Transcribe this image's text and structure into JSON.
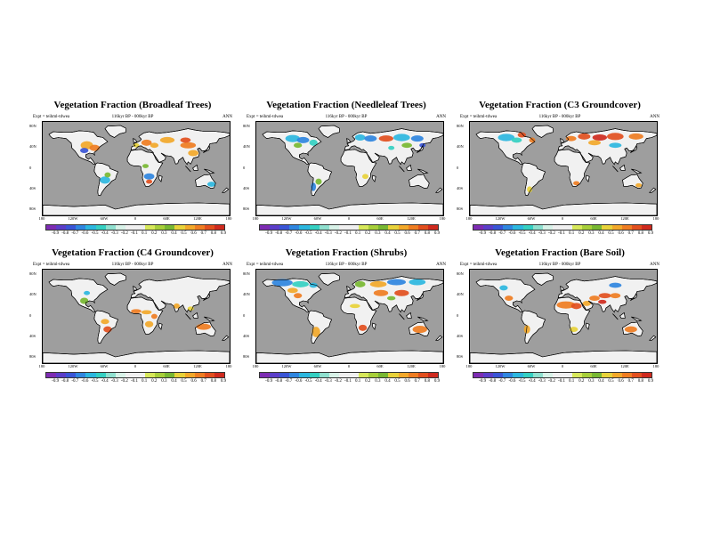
{
  "colors": {
    "ocean": "#9e9e9e",
    "land": "#f1f1f1",
    "coast": "#000000",
    "colorbar": [
      "#7d2cb3",
      "#5b3ec9",
      "#3a55d6",
      "#2f86e0",
      "#2cb7df",
      "#35d0c2",
      "#8fe0cf",
      "#d8f2e8",
      "#f0f0f0",
      "#f0f0f0",
      "#d7e85a",
      "#a7cf3a",
      "#78b832",
      "#e8d23a",
      "#f2a82a",
      "#ef7d22",
      "#e24f1e",
      "#cf2a1e"
    ]
  },
  "colorbar_labels": [
    "-0.9",
    "-0.8",
    "-0.7",
    "-0.6",
    "-0.5",
    "-0.4",
    "-0.3",
    "-0.2",
    "-0.1",
    "0.1",
    "0.2",
    "0.3",
    "0.4",
    "0.5",
    "0.6",
    "0.7",
    "0.8",
    "0.9"
  ],
  "x_ticks": [
    "180",
    "120W",
    "60W",
    "0",
    "60E",
    "120E",
    "180"
  ],
  "y_ticks": [
    "80N",
    "40N",
    "0",
    "40S",
    "80S"
  ],
  "panels": [
    {
      "title": "Vegetation Fraction (Broadleaf Trees)",
      "experiment": "Expt = teihml-tdwea",
      "subtitle": "116kyr BP - 000kyr BP",
      "season": "ANN",
      "pattern": "broadleaf"
    },
    {
      "title": "Vegetation Fraction (Needleleaf Trees)",
      "experiment": "Expt = teihml-tdwea",
      "subtitle": "116kyr BP - 000kyr BP",
      "season": "ANN",
      "pattern": "needleleaf"
    },
    {
      "title": "Vegetation Fraction (C3 Groundcover)",
      "experiment": "Expt = teihml-tdwea",
      "subtitle": "116kyr BP - 000kyr BP",
      "season": "ANN",
      "pattern": "c3"
    },
    {
      "title": "Vegetation Fraction (C4 Groundcover)",
      "experiment": "Expt = teihml-tdwea",
      "subtitle": "116kyr BP - 000kyr BP",
      "season": "ANN",
      "pattern": "c4"
    },
    {
      "title": "Vegetation Fraction (Shrubs)",
      "experiment": "Expt = teihml-tdwea",
      "subtitle": "116kyr BP - 000kyr BP",
      "season": "ANN",
      "pattern": "shrubs"
    },
    {
      "title": "Vegetation Fraction (Bare Soil)",
      "experiment": "Expt = teihml-tdwea",
      "subtitle": "116kyr BP - 000kyr BP",
      "season": "ANN",
      "pattern": "bare"
    }
  ]
}
